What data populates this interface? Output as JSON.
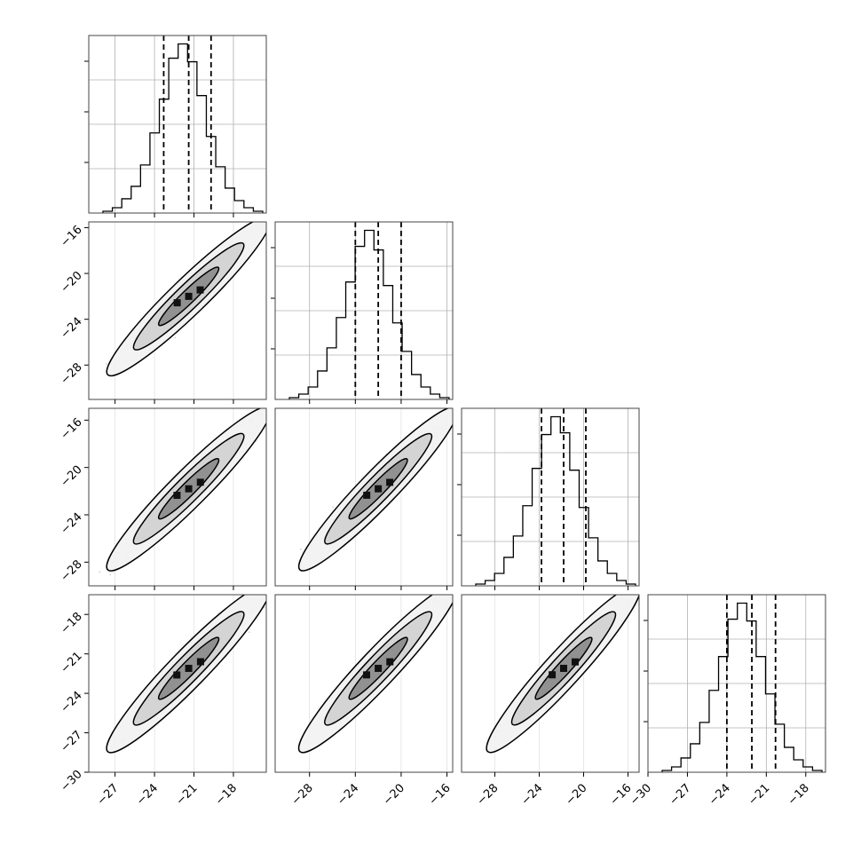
{
  "chart_data": {
    "type": "corner",
    "n_params": 4,
    "params": [
      {
        "index": 0,
        "hist_range": [
          -29,
          -15.5
        ],
        "axis_ticks": [
          -27,
          -24,
          -21,
          -18
        ],
        "axis_tick_labels": [
          "−27",
          "−24",
          "−21",
          "−18"
        ],
        "quantiles": [
          -23.3,
          -21.4,
          -19.7
        ],
        "hist_counts": [
          1,
          3,
          8,
          15,
          27,
          45,
          64,
          87,
          95,
          85,
          66,
          43,
          26,
          14,
          7,
          3,
          1
        ]
      },
      {
        "index": 1,
        "hist_range": [
          -31,
          -15.5
        ],
        "axis_ticks": [
          -28,
          -24,
          -20,
          -16
        ],
        "axis_tick_labels": [
          "−28",
          "−24",
          "−20",
          "−16"
        ],
        "quantiles": [
          -24.0,
          -22.0,
          -20.0
        ],
        "hist_counts": [
          1,
          3,
          7,
          16,
          29,
          46,
          66,
          86,
          95,
          84,
          64,
          43,
          27,
          14,
          7,
          3,
          1
        ]
      },
      {
        "index": 2,
        "hist_range": [
          -31,
          -15
        ],
        "axis_ticks": [
          -28,
          -24,
          -20,
          -16
        ],
        "axis_tick_labels": [
          "−28",
          "−24",
          "−20",
          "−16"
        ],
        "quantiles": [
          -23.8,
          -21.8,
          -19.8
        ],
        "hist_counts": [
          1,
          3,
          7,
          16,
          28,
          45,
          66,
          85,
          95,
          86,
          65,
          44,
          27,
          14,
          7,
          3,
          1
        ]
      },
      {
        "index": 3,
        "hist_range": [
          -30,
          -16.5
        ],
        "axis_ticks": [
          -30,
          -27,
          -24,
          -21,
          -18
        ],
        "axis_tick_labels": [
          "−30",
          "−27",
          "−24",
          "−21",
          "−18"
        ],
        "quantiles": [
          -24.0,
          -22.1,
          -20.3
        ],
        "hist_counts": [
          1,
          3,
          8,
          16,
          28,
          46,
          65,
          86,
          95,
          85,
          65,
          44,
          27,
          14,
          7,
          3,
          1
        ]
      }
    ],
    "row_axes": [
      {
        "row": 1,
        "range": [
          -31,
          -15.5
        ],
        "ticks": [
          -28,
          -24,
          -20,
          -16
        ],
        "tick_labels": [
          "−28",
          "−24",
          "−20",
          "−16"
        ]
      },
      {
        "row": 2,
        "range": [
          -30,
          -15
        ],
        "ticks": [
          -28,
          -24,
          -20,
          -16
        ],
        "tick_labels": [
          "−28",
          "−24",
          "−20",
          "−16"
        ]
      },
      {
        "row": 3,
        "range": [
          -30,
          -16.5
        ],
        "ticks": [
          -30,
          -27,
          -24,
          -21,
          -18
        ],
        "tick_labels": [
          "−30",
          "−27",
          "−24",
          "−21",
          "−18"
        ]
      }
    ],
    "correlation": 0.95,
    "contour_levels": 3,
    "grid": true,
    "colors": {
      "line": "#000000",
      "grid": "#b0b0b0",
      "points": "#7f7f7f"
    }
  }
}
